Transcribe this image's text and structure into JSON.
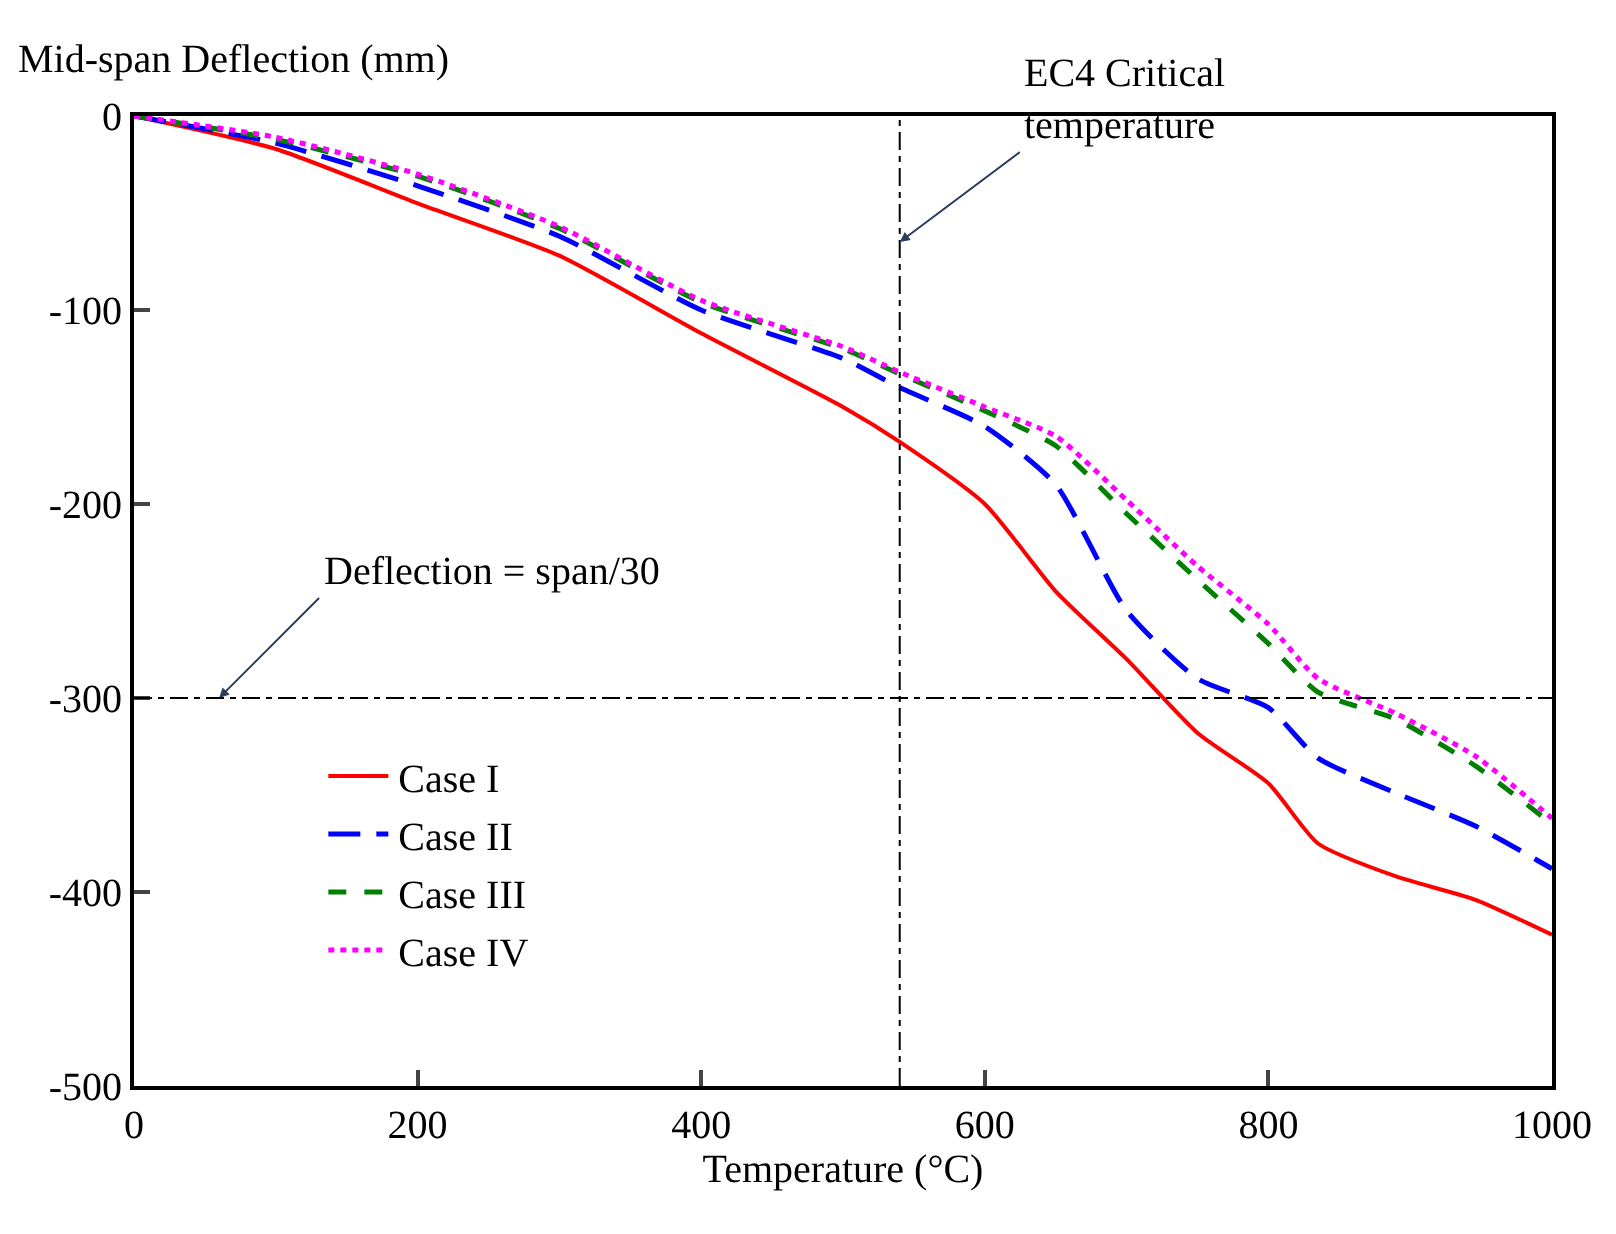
{
  "chart_data": {
    "type": "line",
    "ylabel": "Mid-span Deflection (mm)",
    "xlabel": "Temperature (°C)",
    "xlim": [
      0,
      1000
    ],
    "xticks": [
      0,
      200,
      400,
      600,
      800,
      1000
    ],
    "ylim": [
      -500,
      0
    ],
    "yticks": [
      -500,
      -400,
      -300,
      -200,
      -100,
      0
    ],
    "legend": "bottom left",
    "marker": "none",
    "x": [
      0,
      100,
      200,
      300,
      400,
      500,
      540,
      600,
      650,
      700,
      750,
      800,
      835,
      890,
      946,
      1000
    ],
    "series": [
      {
        "name": "Case I",
        "color": "#ff0000",
        "line_style": "solid",
        "values": [
          0,
          -17,
          -45,
          -72,
          -112,
          -150,
          -168,
          -200,
          -245,
          -280,
          -318,
          -344,
          -375,
          -392,
          -404,
          -422
        ]
      },
      {
        "name": "Case II",
        "color": "#0000ff",
        "line_style": "dashed",
        "values": [
          0,
          -14,
          -36,
          -62,
          -100,
          -125,
          -140,
          -160,
          -190,
          -255,
          -290,
          -305,
          -331,
          -349,
          -366,
          -388
        ]
      },
      {
        "name": "Case III",
        "color": "#008000",
        "line_style": "dashed",
        "values": [
          0,
          -12,
          -31,
          -58,
          -96,
          -120,
          -133,
          -152,
          -170,
          -205,
          -239,
          -272,
          -297,
          -311,
          -335,
          -365
        ]
      },
      {
        "name": "Case IV",
        "color": "#ff00ff",
        "line_style": "dotted",
        "values": [
          0,
          -11,
          -30,
          -57,
          -95,
          -119,
          -132,
          -150,
          -165,
          -198,
          -232,
          -262,
          -290,
          -308,
          -330,
          -362
        ]
      }
    ],
    "ref_lines": [
      {
        "axis": "x",
        "value": 540,
        "line_style": "dashdot",
        "color": "#000000"
      },
      {
        "axis": "y",
        "value": -300,
        "line_style": "dashdot",
        "color": "#000000"
      }
    ],
    "annotations": [
      {
        "text": "EC4 Critical temperature",
        "x": 540,
        "y": -65
      },
      {
        "text": "Deflection = span/30",
        "x": 60,
        "y": -300
      }
    ]
  }
}
